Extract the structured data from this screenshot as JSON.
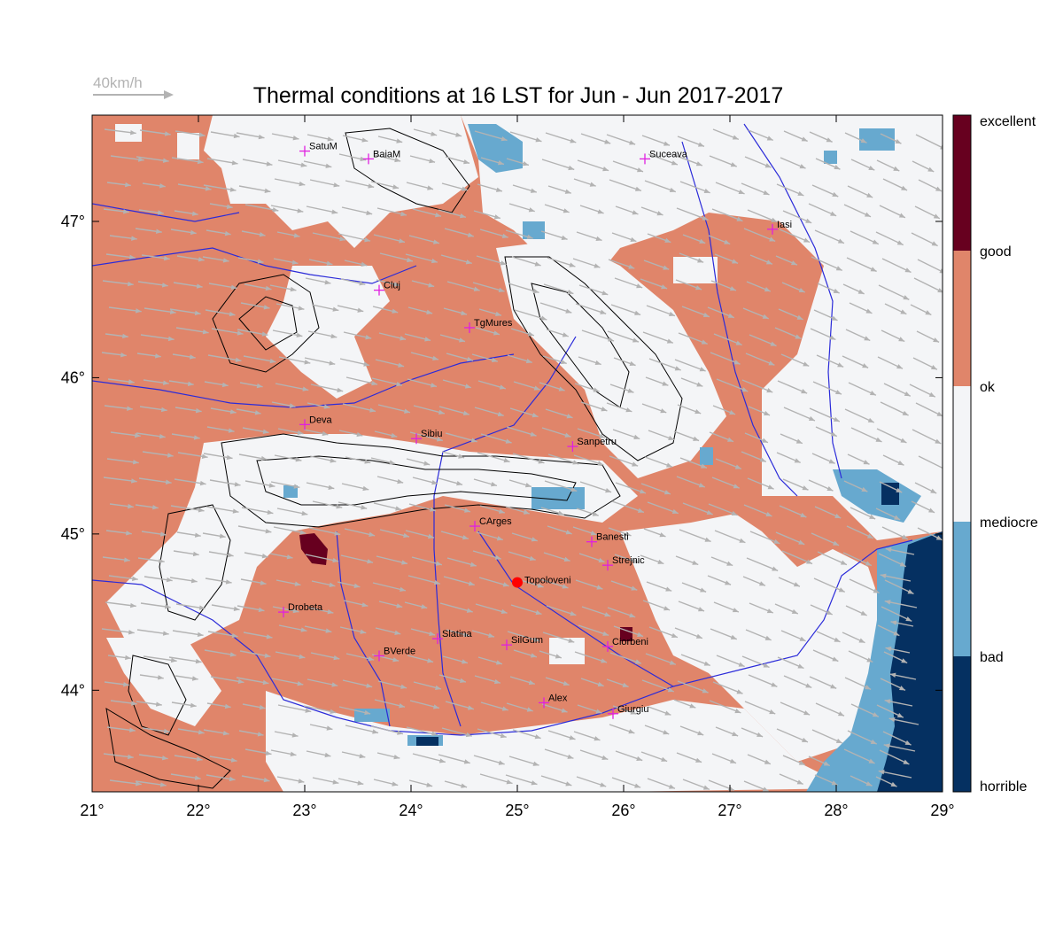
{
  "title": "Thermal conditions at 16 LST for Jun - Jun  2017-2017",
  "wind_scale_label": "40km/h",
  "colors": {
    "excellent": "#67001f",
    "good": "#e0856a",
    "ok": "#f4f5f7",
    "bad": "#67a9cf",
    "horrible": "#053061",
    "arrow": "#b3b3b3",
    "river": "#2b2bd9",
    "contour": "#000000",
    "city_marker": "#e020e0",
    "highlight_marker": "#ff0000"
  },
  "legend": {
    "levels": [
      "excellent",
      "good",
      "ok",
      "mediocre",
      "bad",
      "horrible"
    ]
  },
  "axes": {
    "x_ticks": [
      "21°",
      "22°",
      "23°",
      "24°",
      "25°",
      "26°",
      "27°",
      "28°",
      "29°"
    ],
    "y_ticks": [
      "47°",
      "46°",
      "45°",
      "44°"
    ],
    "lon_range": [
      21,
      29
    ],
    "lat_range": [
      43.35,
      47.68
    ]
  },
  "cities": [
    {
      "name": "SatuM",
      "lon": 23.0,
      "lat": 47.45
    },
    {
      "name": "BaiaM",
      "lon": 23.6,
      "lat": 47.4
    },
    {
      "name": "Suceava",
      "lon": 26.2,
      "lat": 47.4
    },
    {
      "name": "Iasi",
      "lon": 27.4,
      "lat": 46.95
    },
    {
      "name": "Cluj",
      "lon": 23.7,
      "lat": 46.56
    },
    {
      "name": "TgMures",
      "lon": 24.55,
      "lat": 46.32
    },
    {
      "name": "Deva",
      "lon": 23.0,
      "lat": 45.7
    },
    {
      "name": "Sibiu",
      "lon": 24.05,
      "lat": 45.61
    },
    {
      "name": "Sanpetru",
      "lon": 25.52,
      "lat": 45.56
    },
    {
      "name": "CArges",
      "lon": 24.6,
      "lat": 45.05
    },
    {
      "name": "Banesti",
      "lon": 25.7,
      "lat": 44.95
    },
    {
      "name": "Strejnic",
      "lon": 25.85,
      "lat": 44.8
    },
    {
      "name": "Drobeta",
      "lon": 22.8,
      "lat": 44.5
    },
    {
      "name": "Slatina",
      "lon": 24.25,
      "lat": 44.33
    },
    {
      "name": "SilGum",
      "lon": 24.9,
      "lat": 44.29
    },
    {
      "name": "Ciorbeni",
      "lon": 25.85,
      "lat": 44.28
    },
    {
      "name": "BVerde",
      "lon": 23.7,
      "lat": 44.22
    },
    {
      "name": "Alex",
      "lon": 25.25,
      "lat": 43.92
    },
    {
      "name": "Giurgiu",
      "lon": 25.9,
      "lat": 43.85
    }
  ],
  "highlight_point": {
    "name": "Topoloveni",
    "lon": 25.0,
    "lat": 44.69
  }
}
